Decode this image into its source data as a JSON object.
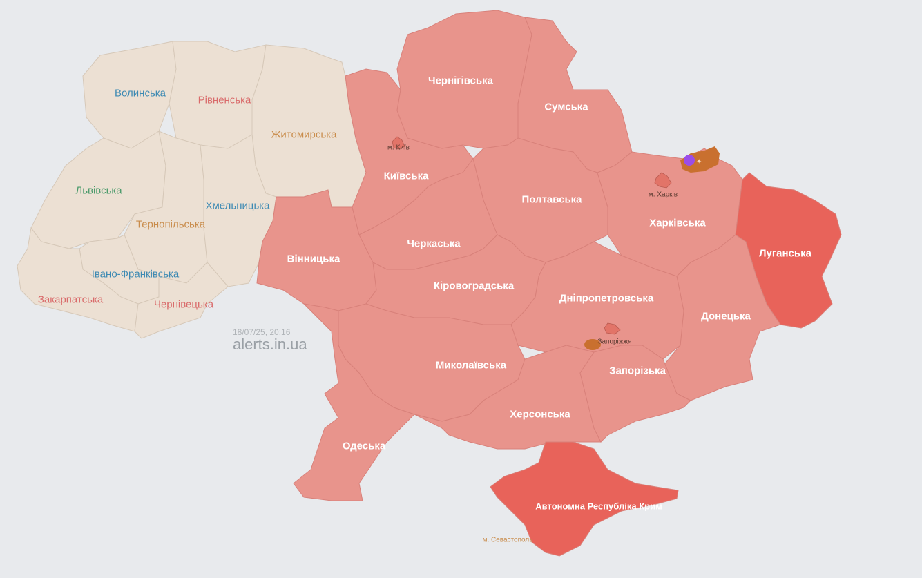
{
  "colors": {
    "background": "#e8eaed",
    "no_alert": "#ece0d3",
    "alert": "#e8948c",
    "alert_strong": "#e8635a",
    "city_alert": "#e27468",
    "threat": "#c9702f",
    "threat_badge": "#9b4de8",
    "border": "#d0c0b0"
  },
  "regions": [
    {
      "name": "Волинська",
      "status": "none",
      "label_color": "#3d8ab3"
    },
    {
      "name": "Рівненська",
      "status": "none",
      "label_color": "#d96a6a"
    },
    {
      "name": "Житомирська",
      "status": "none",
      "label_color": "#c98c4b"
    },
    {
      "name": "Львівська",
      "status": "none",
      "label_color": "#4a9a6a"
    },
    {
      "name": "Тернопільська",
      "status": "none",
      "label_color": "#c98c4b"
    },
    {
      "name": "Хмельницька",
      "status": "none",
      "label_color": "#3d8ab3"
    },
    {
      "name": "Івано-Франківська",
      "status": "none",
      "label_color": "#3d8ab3"
    },
    {
      "name": "Закарпатська",
      "status": "none",
      "label_color": "#d96a6a"
    },
    {
      "name": "Чернівецька",
      "status": "none",
      "label_color": "#d96a6a"
    },
    {
      "name": "Вінницька",
      "status": "alert"
    },
    {
      "name": "Київська",
      "status": "alert"
    },
    {
      "name": "Чернігівська",
      "status": "alert"
    },
    {
      "name": "Сумська",
      "status": "alert"
    },
    {
      "name": "Полтавська",
      "status": "alert"
    },
    {
      "name": "Харківська",
      "status": "alert"
    },
    {
      "name": "Луганська",
      "status": "alert_strong"
    },
    {
      "name": "Донецька",
      "status": "alert"
    },
    {
      "name": "Дніпропетровська",
      "status": "alert"
    },
    {
      "name": "Черкаська",
      "status": "alert"
    },
    {
      "name": "Кіровоградська",
      "status": "alert"
    },
    {
      "name": "Миколаївська",
      "status": "alert"
    },
    {
      "name": "Одеська",
      "status": "alert"
    },
    {
      "name": "Херсонська",
      "status": "alert"
    },
    {
      "name": "Запорізька",
      "status": "alert"
    },
    {
      "name": "Автономна Республіка Крим",
      "status": "alert_strong"
    }
  ],
  "cities": [
    {
      "name": "м. Київ",
      "status": "alert"
    },
    {
      "name": "м. Харків",
      "status": "alert"
    },
    {
      "name": "Запоріжжя",
      "status": "alert"
    },
    {
      "name": "м. Севастополь",
      "status": "alert_strong",
      "label_color": "#c98c4b"
    }
  ],
  "threat_icons": [
    "rifle-icon",
    "artillery-icon"
  ],
  "timestamp": "18/07/25, 20:16",
  "brand": "alerts.in.ua"
}
